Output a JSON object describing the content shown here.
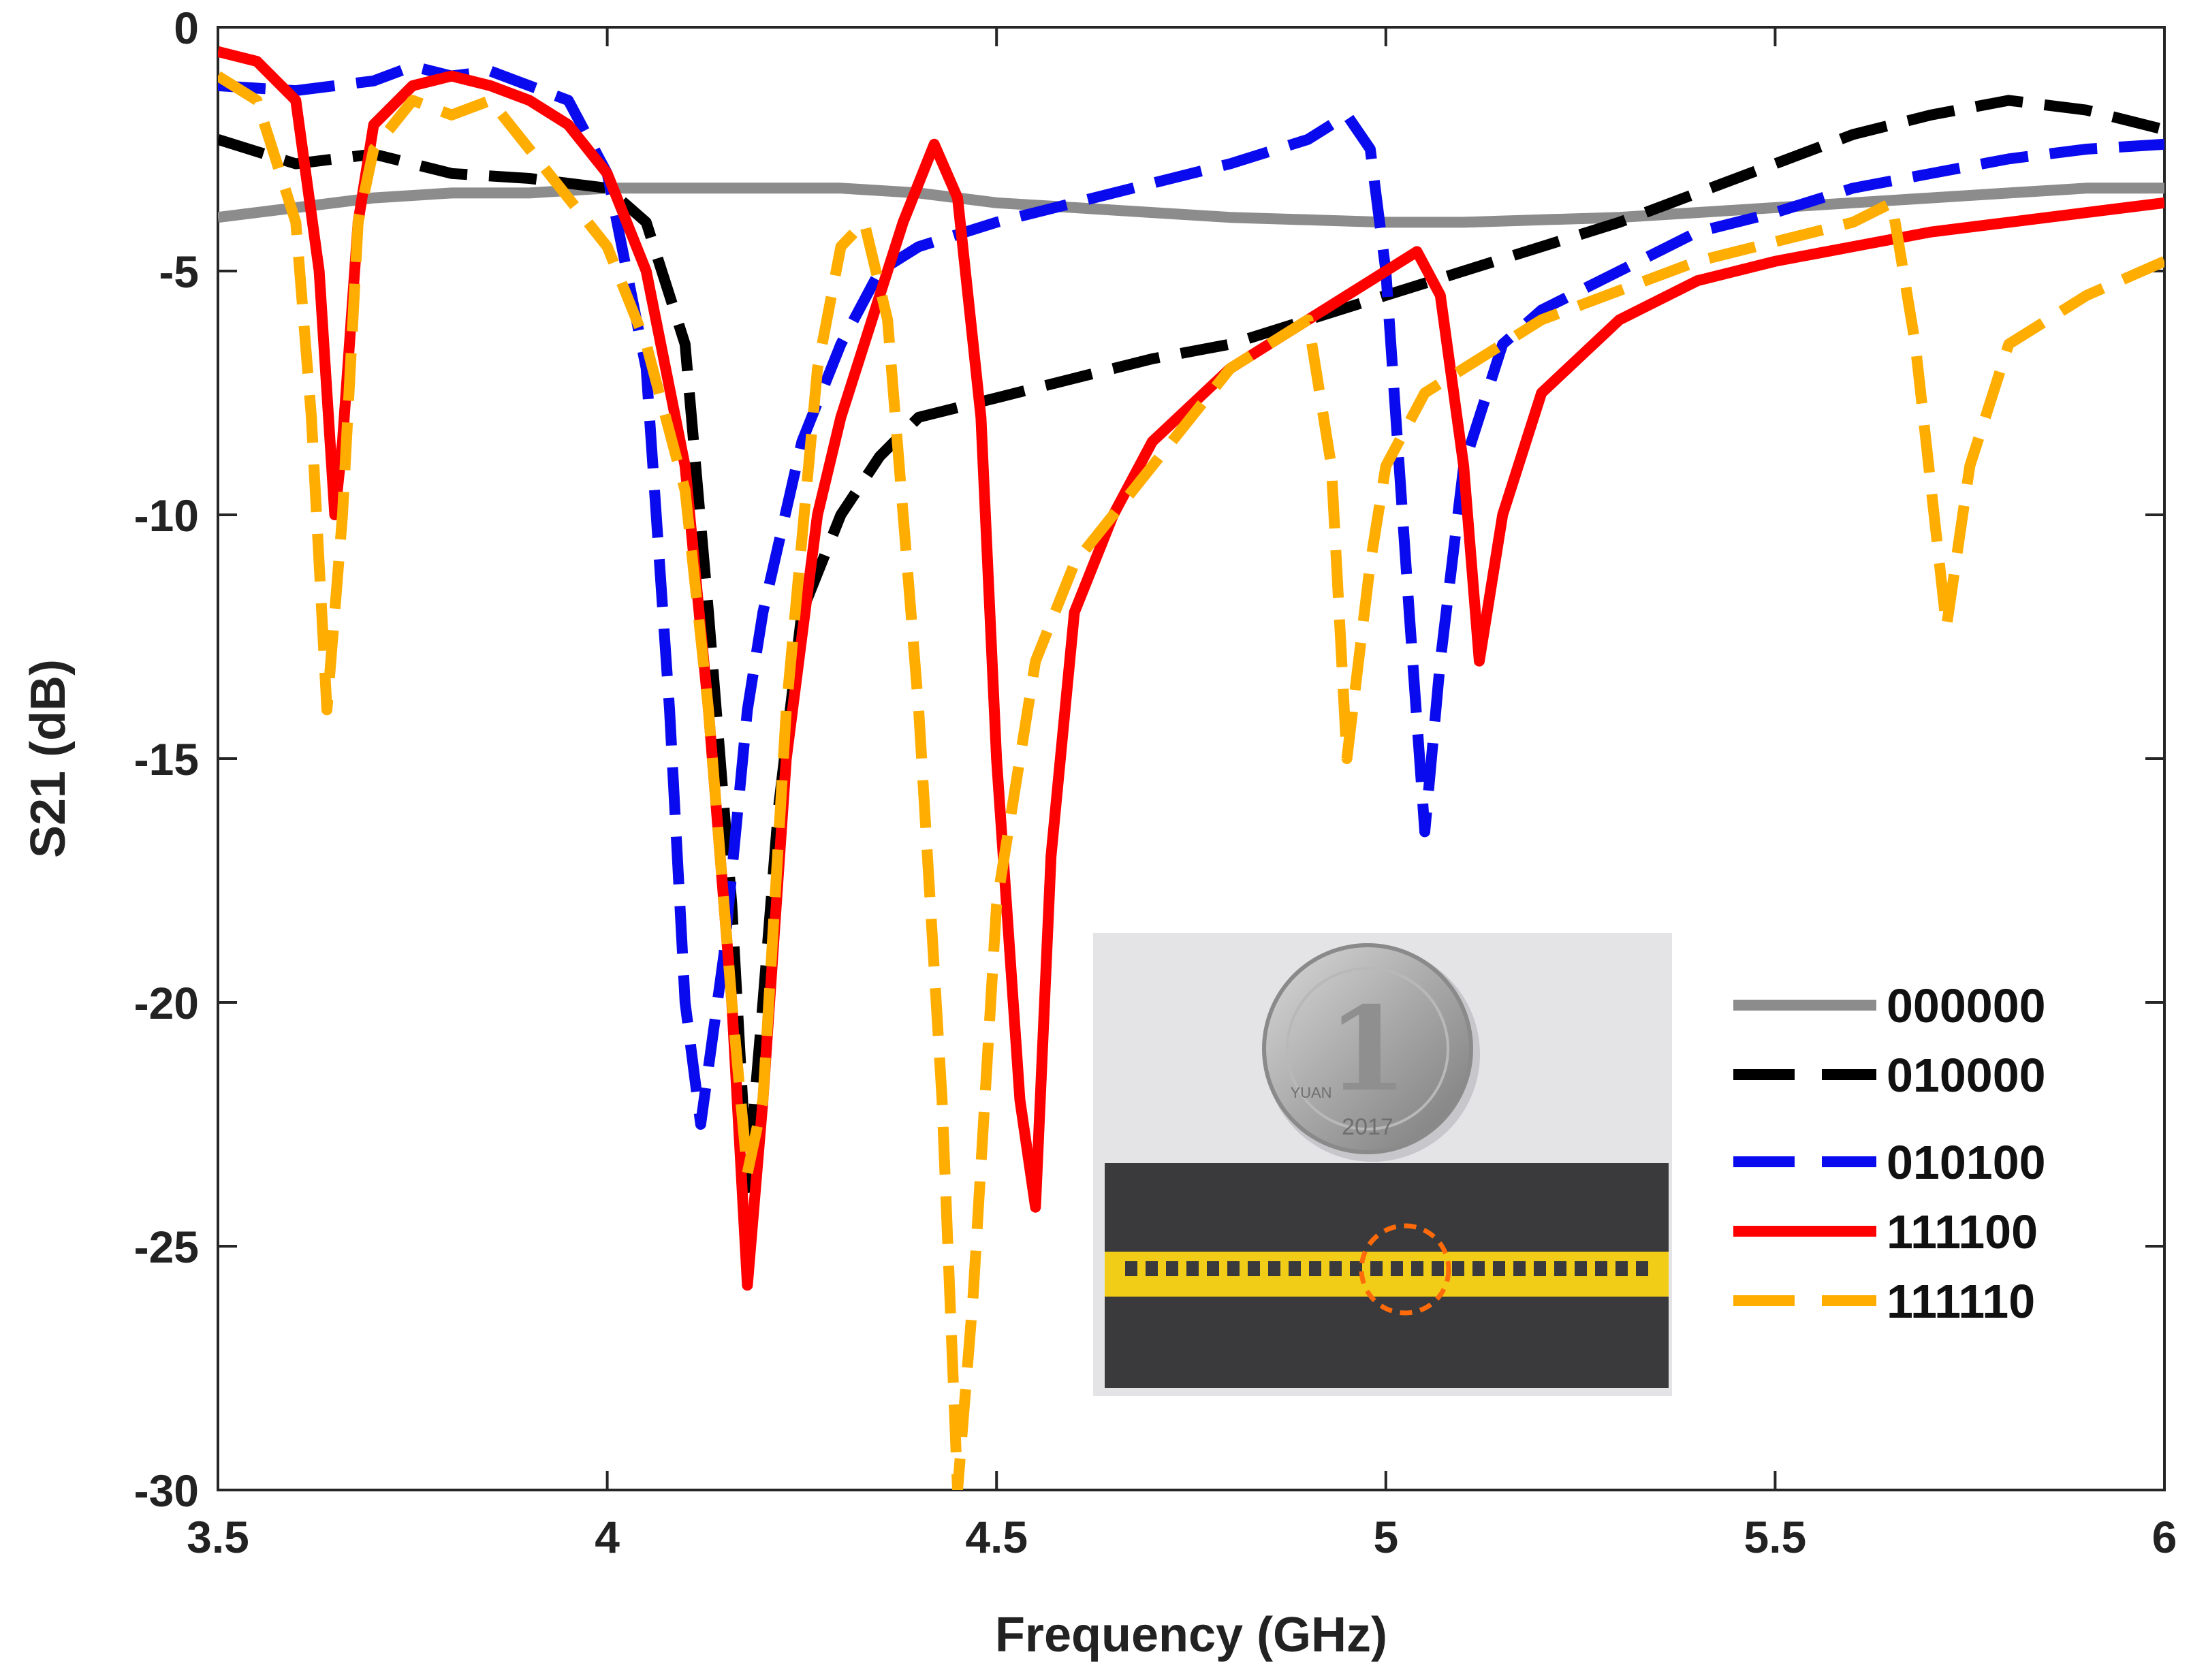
{
  "chart_data": {
    "type": "line",
    "title": "",
    "xlabel": "Frequency (GHz)",
    "ylabel": "S21 (dB)",
    "xlim": [
      3.5,
      6
    ],
    "ylim": [
      -30,
      0
    ],
    "xticks": [
      3.5,
      4,
      4.5,
      5,
      5.5,
      6
    ],
    "xtick_labels": [
      "3.5",
      "4",
      "4.5",
      "5",
      "5.5",
      "6"
    ],
    "yticks": [
      0,
      -5,
      -10,
      -15,
      -20,
      -25,
      -30
    ],
    "ytick_labels": [
      "0",
      "-5",
      "-10",
      "-15",
      "-20",
      "-25",
      "-30"
    ],
    "grid": false,
    "legend_position": "bottom-right",
    "series": [
      {
        "name": "000000",
        "color": "#8c8c8c",
        "style": "solid",
        "x": [
          3.5,
          3.6,
          3.7,
          3.8,
          3.9,
          4.0,
          4.1,
          4.2,
          4.3,
          4.4,
          4.5,
          4.6,
          4.7,
          4.8,
          4.9,
          5.0,
          5.1,
          5.2,
          5.3,
          5.4,
          5.5,
          5.6,
          5.7,
          5.8,
          5.9,
          6.0
        ],
        "y": [
          -3.9,
          -3.7,
          -3.5,
          -3.4,
          -3.4,
          -3.3,
          -3.3,
          -3.3,
          -3.3,
          -3.4,
          -3.6,
          -3.7,
          -3.8,
          -3.9,
          -3.95,
          -4.0,
          -4.0,
          -3.95,
          -3.9,
          -3.8,
          -3.7,
          -3.6,
          -3.5,
          -3.4,
          -3.3,
          -3.3
        ]
      },
      {
        "name": "010000",
        "color": "#000000",
        "style": "dashed",
        "x": [
          3.5,
          3.6,
          3.7,
          3.8,
          3.9,
          4.0,
          4.05,
          4.1,
          4.13,
          4.16,
          4.18,
          4.2,
          4.22,
          4.25,
          4.3,
          4.35,
          4.4,
          4.5,
          4.6,
          4.7,
          4.8,
          4.9,
          5.0,
          5.1,
          5.2,
          5.3,
          5.4,
          5.5,
          5.6,
          5.7,
          5.8,
          5.9,
          6.0
        ],
        "y": [
          -2.3,
          -2.8,
          -2.6,
          -3.0,
          -3.1,
          -3.3,
          -4.0,
          -6.5,
          -12.0,
          -18.0,
          -23.8,
          -20.0,
          -16.0,
          -12.0,
          -10.0,
          -8.8,
          -8.0,
          -7.6,
          -7.2,
          -6.8,
          -6.5,
          -6.0,
          -5.5,
          -5.0,
          -4.5,
          -4.0,
          -3.4,
          -2.8,
          -2.2,
          -1.8,
          -1.5,
          -1.7,
          -2.1
        ]
      },
      {
        "name": "010100",
        "color": "#0a0aee",
        "style": "dashed",
        "x": [
          3.5,
          3.6,
          3.7,
          3.75,
          3.8,
          3.85,
          3.9,
          3.95,
          4.0,
          4.05,
          4.08,
          4.1,
          4.12,
          4.15,
          4.18,
          4.2,
          4.25,
          4.3,
          4.35,
          4.4,
          4.5,
          4.6,
          4.7,
          4.8,
          4.9,
          4.95,
          4.98,
          5.0,
          5.03,
          5.05,
          5.07,
          5.1,
          5.15,
          5.2,
          5.3,
          5.4,
          5.5,
          5.6,
          5.7,
          5.8,
          5.9,
          6.0
        ],
        "y": [
          -1.2,
          -1.3,
          -1.1,
          -0.8,
          -1.0,
          -0.9,
          -1.2,
          -1.5,
          -3.0,
          -7.0,
          -14.0,
          -20.0,
          -22.5,
          -19.0,
          -14.0,
          -12.0,
          -8.5,
          -6.5,
          -5.0,
          -4.5,
          -4.0,
          -3.6,
          -3.2,
          -2.8,
          -2.3,
          -1.8,
          -2.5,
          -5.0,
          -12.0,
          -16.5,
          -13.0,
          -9.0,
          -6.5,
          -5.8,
          -5.0,
          -4.2,
          -3.8,
          -3.3,
          -3.0,
          -2.7,
          -2.5,
          -2.4
        ]
      },
      {
        "name": "111100",
        "color": "#ff0000",
        "style": "solid",
        "x": [
          3.5,
          3.55,
          3.6,
          3.63,
          3.65,
          3.66,
          3.68,
          3.7,
          3.75,
          3.8,
          3.85,
          3.9,
          3.95,
          4.0,
          4.05,
          4.1,
          4.13,
          4.16,
          4.18,
          4.2,
          4.23,
          4.27,
          4.3,
          4.35,
          4.38,
          4.42,
          4.45,
          4.48,
          4.5,
          4.53,
          4.55,
          4.57,
          4.6,
          4.65,
          4.7,
          4.8,
          4.9,
          5.0,
          5.04,
          5.07,
          5.1,
          5.12,
          5.15,
          5.2,
          5.3,
          5.4,
          5.5,
          5.6,
          5.7,
          5.8,
          5.9,
          6.0
        ],
        "y": [
          -0.5,
          -0.7,
          -1.5,
          -5.0,
          -10.0,
          -8.5,
          -4.0,
          -2.0,
          -1.2,
          -1.0,
          -1.2,
          -1.5,
          -2.0,
          -3.0,
          -5.0,
          -9.0,
          -14.0,
          -20.0,
          -25.8,
          -22.0,
          -15.0,
          -10.0,
          -8.0,
          -5.5,
          -4.0,
          -2.4,
          -3.5,
          -8.0,
          -15.0,
          -22.0,
          -24.2,
          -17.0,
          -12.0,
          -10.0,
          -8.5,
          -7.0,
          -6.0,
          -5.0,
          -4.6,
          -5.5,
          -9.0,
          -13.0,
          -10.0,
          -7.5,
          -6.0,
          -5.2,
          -4.8,
          -4.5,
          -4.2,
          -4.0,
          -3.8,
          -3.6
        ]
      },
      {
        "name": "111110",
        "color": "#ffad00",
        "style": "dashed",
        "x": [
          3.5,
          3.55,
          3.6,
          3.62,
          3.64,
          3.66,
          3.68,
          3.7,
          3.75,
          3.8,
          3.85,
          3.9,
          3.95,
          4.0,
          4.05,
          4.1,
          4.13,
          4.16,
          4.18,
          4.2,
          4.23,
          4.27,
          4.3,
          4.33,
          4.36,
          4.4,
          4.43,
          4.45,
          4.47,
          4.5,
          4.55,
          4.6,
          4.7,
          4.8,
          4.85,
          4.9,
          4.93,
          4.95,
          4.98,
          5.0,
          5.05,
          5.1,
          5.2,
          5.3,
          5.4,
          5.5,
          5.6,
          5.65,
          5.68,
          5.72,
          5.75,
          5.8,
          5.9,
          6.0
        ],
        "y": [
          -1.0,
          -1.5,
          -4.0,
          -8.0,
          -14.0,
          -10.0,
          -4.0,
          -2.5,
          -1.5,
          -1.8,
          -1.5,
          -2.5,
          -3.5,
          -4.5,
          -6.5,
          -9.5,
          -14.0,
          -20.0,
          -23.5,
          -22.0,
          -14.0,
          -7.0,
          -4.5,
          -4.0,
          -6.0,
          -14.0,
          -22.0,
          -30.0,
          -26.0,
          -18.0,
          -13.0,
          -11.0,
          -9.0,
          -7.0,
          -6.5,
          -6.0,
          -9.0,
          -15.0,
          -11.0,
          -9.0,
          -7.5,
          -7.0,
          -6.0,
          -5.4,
          -4.8,
          -4.4,
          -4.0,
          -3.6,
          -6.5,
          -12.3,
          -9.0,
          -6.5,
          -5.5,
          -4.8
        ]
      }
    ],
    "inset": {
      "description": "photo of fabricated filter with coin",
      "coin_text": "1",
      "coin_year": "2017",
      "coin_mark": "YUAN"
    }
  }
}
